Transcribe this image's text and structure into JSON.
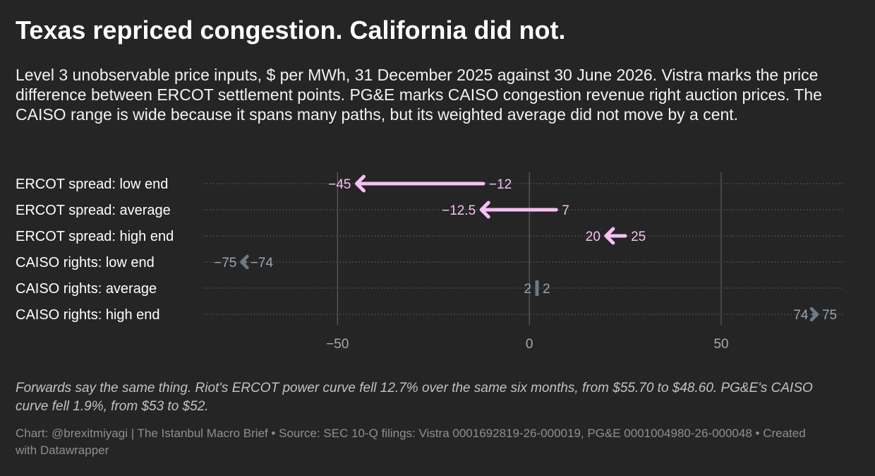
{
  "title": "Texas repriced congestion. California did not.",
  "subtitle": "Level 3 unobservable price inputs, $ per MWh, 31 December 2025 against 30 June 2026. Vistra marks the price difference between ERCOT settlement points. PG&E marks CAISO congestion revenue right auction prices. The CAISO range is wide because it spans many paths, but its weighted average did not move by a cent.",
  "note": "Forwards say the same thing. Riot's ERCOT power curve fell 12.7% over the same six months, from $55.70 to $48.60. PG&E's CAISO curve fell 1.9%, from $53 to $52.",
  "credit": "Chart: @brexitmiyagi | The Istanbul Macro Brief • Source: SEC 10-Q filings: Vistra 0001692819-26-000019, PG&E 0001004980-26-000048 • Created with Datawrapper",
  "colors": {
    "ercot": "#f6c0f4",
    "caiso": "#6d7a88",
    "caiso_label": "#9aa4ae",
    "grid": "#6a6a6a",
    "row_line": "#555555",
    "tick_label": "#a8a8a8"
  },
  "chart_data": {
    "type": "arrow",
    "categories": [
      "ERCOT spread: low end",
      "ERCOT spread: average",
      "ERCOT spread: high end",
      "CAISO rights: low end",
      "CAISO rights: average",
      "CAISO rights: high end"
    ],
    "series": [
      {
        "values": [
          -12,
          7,
          25,
          -74,
          2,
          74
        ]
      },
      {
        "values": [
          -45,
          -12.5,
          20,
          -75,
          2,
          75
        ]
      }
    ],
    "value_labels_start": [
      "−12",
      "7",
      "25",
      "−74",
      "2",
      "74"
    ],
    "value_labels_end": [
      "−45",
      "−12.5",
      "20",
      "−75",
      "2",
      "75"
    ],
    "groups": [
      "ercot",
      "ercot",
      "ercot",
      "caiso",
      "caiso",
      "caiso"
    ],
    "xlim": [
      -85,
      82
    ],
    "xticks": [
      -50,
      0,
      50
    ],
    "xtick_labels": [
      "−50",
      "0",
      "50"
    ],
    "grid": true
  }
}
